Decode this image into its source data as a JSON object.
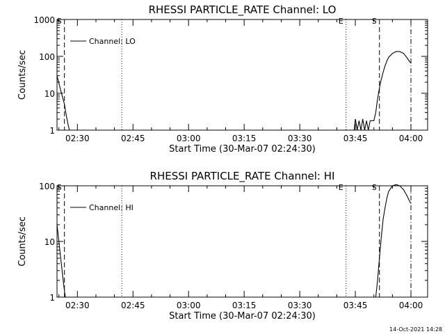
{
  "footer_timestamp": "14-Oct-2021 14:28",
  "chart_data": [
    {
      "type": "line",
      "title": "RHESSI PARTICLE_RATE Channel: LO",
      "xlabel": "Start Time (30-Mar-07 02:24:30)",
      "ylabel": "Counts/sec",
      "y_scale": "log",
      "ylim": [
        1,
        1000
      ],
      "xlim": [
        "02:24:30",
        "04:04:30"
      ],
      "x_ticks": [
        "02:30",
        "02:45",
        "03:00",
        "03:15",
        "03:30",
        "03:45",
        "04:00"
      ],
      "y_ticks": [
        "1",
        "10",
        "100",
        "1000"
      ],
      "grid": false,
      "legend_position": "top-left",
      "series": [
        {
          "name": "Channel: LO",
          "x": [
            "02:24:30",
            "02:25:30",
            "02:26:30",
            "02:27:00",
            "02:27:30",
            "02:27:50",
            "03:44:40",
            "03:45:00",
            "03:45:30",
            "03:46:00",
            "03:46:30",
            "03:47:00",
            "03:47:30",
            "03:48:00",
            "03:48:30",
            "03:49:00",
            "03:49:30",
            "03:50:00",
            "03:50:30",
            "03:51:00",
            "03:51:30",
            "03:52:00",
            "03:52:30",
            "03:53:00",
            "03:53:30",
            "03:54:00",
            "03:55:00",
            "03:56:00",
            "03:57:00",
            "03:58:00",
            "03:59:00",
            "03:59:30",
            "04:00:00"
          ],
          "values": [
            30,
            12,
            5,
            2.5,
            1.4,
            1,
            1,
            2,
            1,
            1.8,
            1,
            2,
            1,
            1.8,
            1,
            1.8,
            1.8,
            1.8,
            3,
            7,
            14,
            24,
            37,
            55,
            75,
            95,
            120,
            135,
            135,
            120,
            90,
            75,
            65
          ]
        }
      ],
      "markers": [
        {
          "label": "S",
          "style": "dash",
          "x": "02:26:30"
        },
        {
          "label": "",
          "style": "dot",
          "x": "02:42:00"
        },
        {
          "label": "E",
          "style": "dot",
          "x": "03:42:30"
        },
        {
          "label": "S",
          "style": "dash",
          "x": "03:51:30"
        },
        {
          "label": "",
          "style": "dashdot",
          "x": "04:00:00"
        }
      ],
      "flag_labels": [
        "S",
        "E",
        "S"
      ]
    },
    {
      "type": "line",
      "title": "RHESSI PARTICLE_RATE Channel: HI",
      "xlabel": "Start Time (30-Mar-07 02:24:30)",
      "ylabel": "Counts/sec",
      "y_scale": "log",
      "ylim": [
        1,
        100
      ],
      "xlim": [
        "02:24:30",
        "04:04:30"
      ],
      "x_ticks": [
        "02:30",
        "02:45",
        "03:00",
        "03:15",
        "03:30",
        "03:45",
        "04:00"
      ],
      "y_ticks": [
        "1",
        "10",
        "100"
      ],
      "grid": false,
      "legend_position": "top-left",
      "series": [
        {
          "name": "Channel: HI",
          "x": [
            "02:24:30",
            "02:25:00",
            "02:25:30",
            "02:26:00",
            "02:26:30",
            "02:26:45",
            "03:50:30",
            "03:51:00",
            "03:51:30",
            "03:52:00",
            "03:52:30",
            "03:53:00",
            "03:53:30",
            "03:54:00",
            "03:55:00",
            "03:56:00",
            "03:57:00",
            "03:58:00",
            "03:59:00",
            "03:59:30",
            "04:00:00"
          ],
          "values": [
            20,
            10,
            5,
            2.5,
            1.3,
            1,
            1,
            2,
            5,
            12,
            25,
            40,
            60,
            80,
            100,
            105,
            100,
            85,
            65,
            55,
            48
          ]
        }
      ],
      "markers": [
        {
          "label": "S",
          "style": "dash",
          "x": "02:26:30"
        },
        {
          "label": "",
          "style": "dot",
          "x": "02:42:00"
        },
        {
          "label": "E",
          "style": "dot",
          "x": "03:42:30"
        },
        {
          "label": "S",
          "style": "dash",
          "x": "03:51:30"
        },
        {
          "label": "",
          "style": "dashdot",
          "x": "04:00:00"
        }
      ],
      "flag_labels": [
        "S",
        "E",
        "S"
      ]
    }
  ]
}
